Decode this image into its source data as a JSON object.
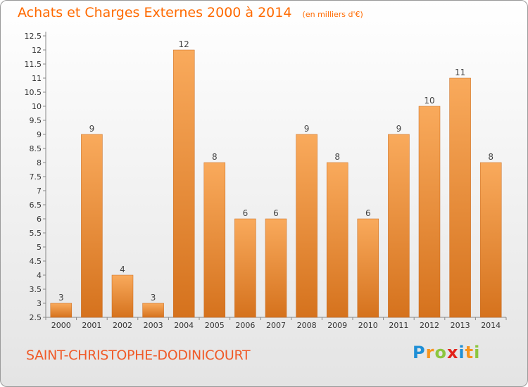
{
  "header": {
    "title": "Achats et Charges Externes 2000 à 2014",
    "subtitle": "(en milliers d'€)"
  },
  "footer": {
    "commune": "SAINT-CHRISTOPHE-DODINICOURT",
    "logo": {
      "letters": [
        "P",
        "r",
        "o",
        "x",
        "i",
        "t",
        "i"
      ]
    }
  },
  "colors": {
    "title": "#ff6a00",
    "bar_light": "#f8a75a",
    "bar_dark": "#d8741f",
    "commune": "#f05a28"
  },
  "chart_data": {
    "type": "bar",
    "categories": [
      "2000",
      "2001",
      "2002",
      "2003",
      "2004",
      "2005",
      "2006",
      "2007",
      "2008",
      "2009",
      "2010",
      "2011",
      "2012",
      "2013",
      "2014"
    ],
    "values": [
      3,
      9,
      4,
      3,
      12,
      8,
      6,
      6,
      9,
      8,
      6,
      9,
      10,
      11,
      8
    ],
    "title": "Achats et Charges Externes 2000 à 2014",
    "ylim": [
      2.5,
      12.5
    ],
    "ytick_step": 0.5,
    "grid": false,
    "legend": "none"
  }
}
